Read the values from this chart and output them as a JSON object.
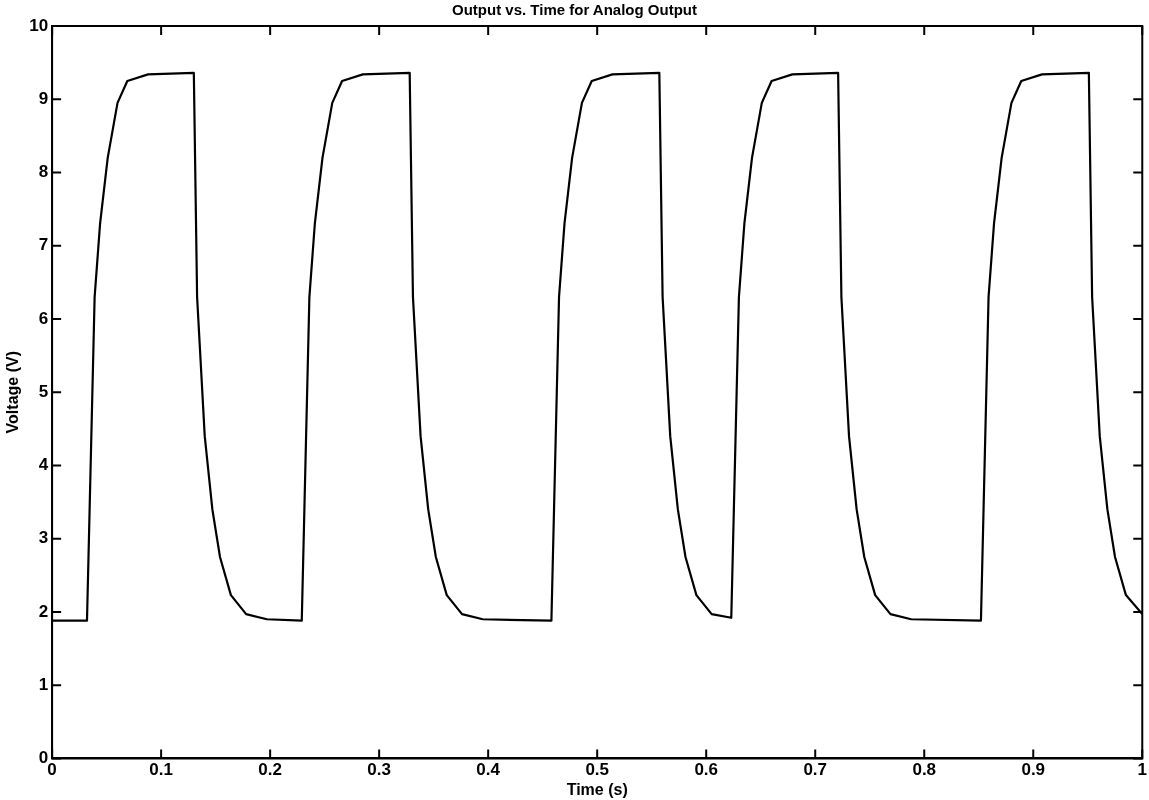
{
  "chart_data": {
    "type": "line",
    "title": "Output vs. Time for Analog Output",
    "xlabel": "Time (s)",
    "ylabel": "Voltage (V)",
    "xlim": [
      0,
      1
    ],
    "xticks": [
      0,
      0.1,
      0.2,
      0.3,
      0.4,
      0.5,
      0.6,
      0.7,
      0.8,
      0.9,
      1
    ],
    "ylim": [
      0,
      10
    ],
    "yticks": [
      0,
      1,
      2,
      3,
      4,
      5,
      6,
      7,
      8,
      9,
      10
    ],
    "grid": false,
    "legend": false,
    "marker": "none",
    "line_style": "solid",
    "series": [
      {
        "color": "#000000",
        "x": [
          0,
          0.032,
          0.039,
          0.044,
          0.051,
          0.06,
          0.069,
          0.088,
          0.13,
          0.133,
          0.14,
          0.147,
          0.154,
          0.164,
          0.178,
          0.197,
          0.229,
          0.236,
          0.241,
          0.248,
          0.257,
          0.266,
          0.285,
          0.328,
          0.331,
          0.338,
          0.345,
          0.352,
          0.362,
          0.376,
          0.395,
          0.458,
          0.465,
          0.47,
          0.477,
          0.486,
          0.495,
          0.514,
          0.557,
          0.56,
          0.567,
          0.574,
          0.581,
          0.591,
          0.605,
          0.623,
          0.63,
          0.635,
          0.642,
          0.651,
          0.66,
          0.679,
          0.721,
          0.724,
          0.731,
          0.738,
          0.745,
          0.755,
          0.769,
          0.788,
          0.852,
          0.859,
          0.864,
          0.871,
          0.88,
          0.889,
          0.908,
          0.951,
          0.954,
          0.961,
          0.968,
          0.975,
          0.985,
          1.0
        ],
        "values": [
          1.88,
          1.88,
          6.3,
          7.3,
          8.2,
          8.95,
          9.25,
          9.34,
          9.36,
          6.3,
          4.4,
          3.4,
          2.75,
          2.23,
          1.97,
          1.9,
          1.88,
          6.3,
          7.3,
          8.2,
          8.95,
          9.25,
          9.34,
          9.36,
          6.3,
          4.4,
          3.4,
          2.75,
          2.23,
          1.97,
          1.9,
          1.88,
          6.3,
          7.3,
          8.2,
          8.95,
          9.25,
          9.34,
          9.36,
          6.3,
          4.4,
          3.4,
          2.75,
          2.23,
          1.97,
          1.92,
          6.3,
          7.3,
          8.2,
          8.95,
          9.25,
          9.34,
          9.36,
          6.3,
          4.4,
          3.4,
          2.75,
          2.23,
          1.97,
          1.9,
          1.88,
          6.3,
          7.3,
          8.2,
          8.95,
          9.25,
          9.34,
          9.36,
          6.3,
          4.4,
          3.4,
          2.75,
          2.23,
          1.97
        ]
      }
    ]
  }
}
